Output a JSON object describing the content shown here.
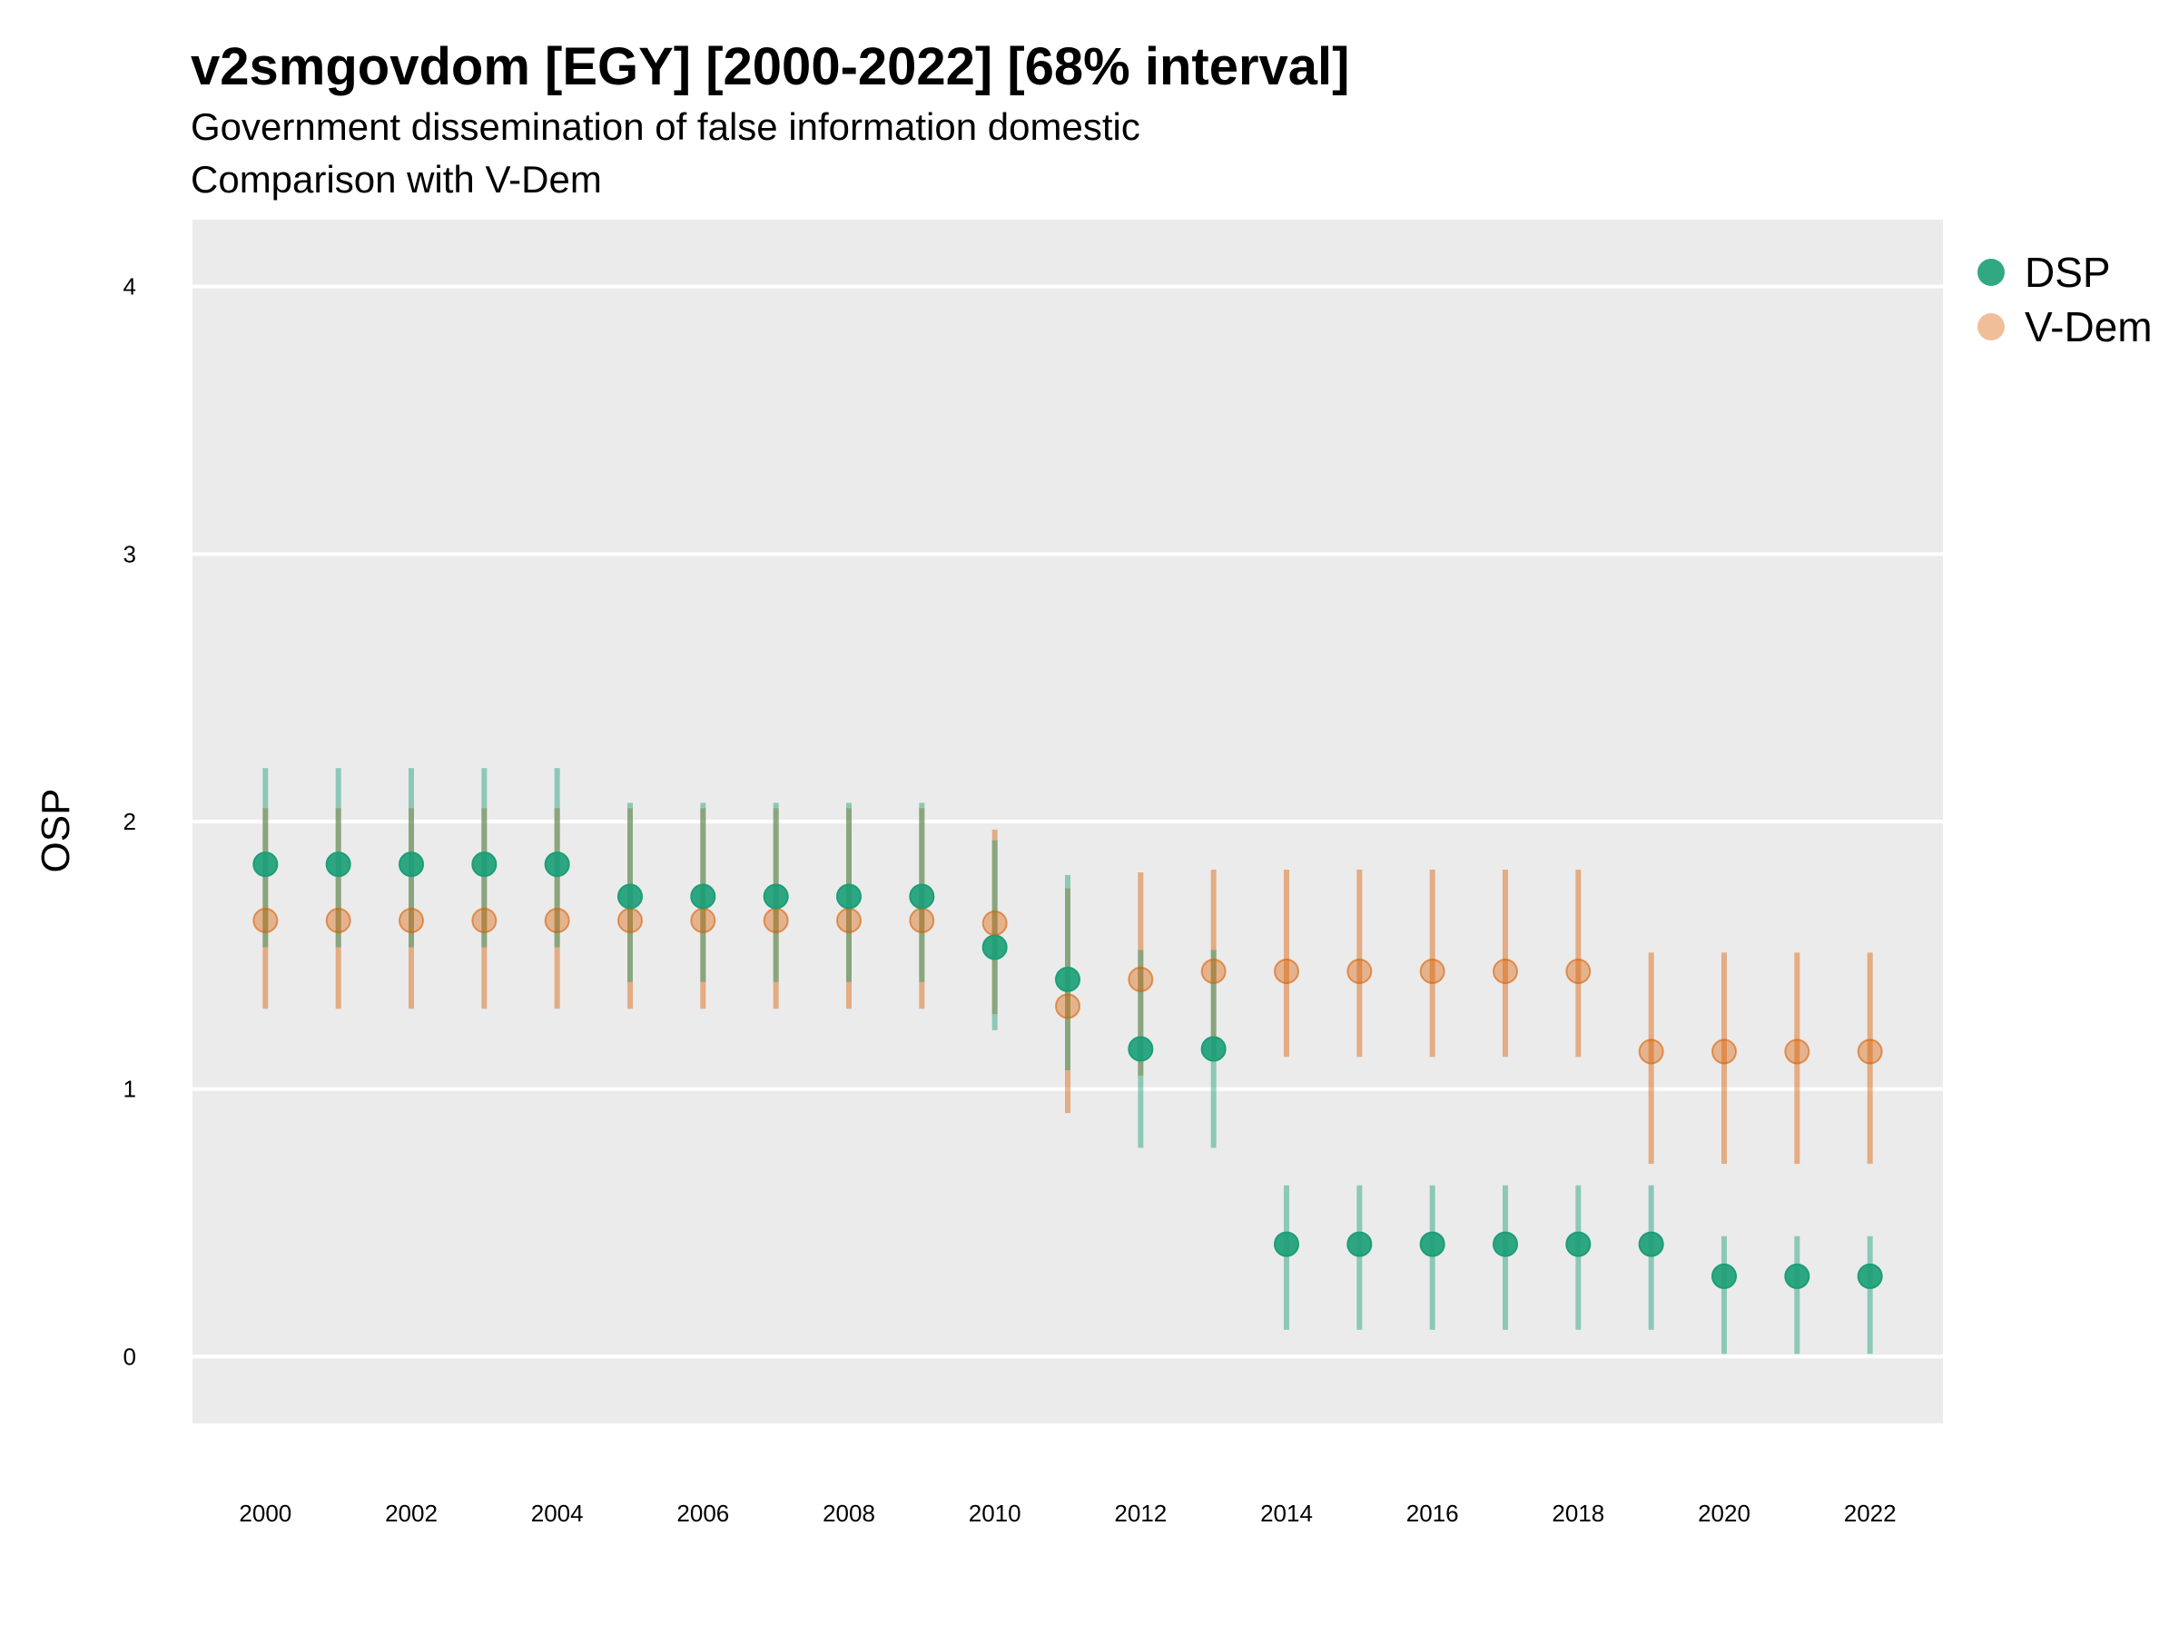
{
  "title": "v2smgovdom [EGY] [2000-2022] [68% interval]",
  "subtitle_lines": [
    "Government dissemination of false information domestic",
    "Comparison with V-Dem"
  ],
  "chart_data": {
    "type": "scatter",
    "title": "v2smgovdom [EGY] [2000-2022] [68% interval]",
    "xlabel": "",
    "ylabel": "OSP",
    "xlim": [
      1999,
      2023
    ],
    "ylim": [
      -0.25,
      4.25
    ],
    "x_ticks": [
      2000,
      2002,
      2004,
      2006,
      2008,
      2010,
      2012,
      2014,
      2016,
      2018,
      2020,
      2022
    ],
    "y_ticks": [
      0,
      1,
      2,
      3,
      4
    ],
    "grid": true,
    "legend_position": "top-right",
    "x": [
      2000,
      2001,
      2002,
      2003,
      2004,
      2005,
      2006,
      2007,
      2008,
      2009,
      2010,
      2011,
      2012,
      2013,
      2014,
      2015,
      2016,
      2017,
      2018,
      2019,
      2020,
      2021,
      2022
    ],
    "series": [
      {
        "name": "DSP",
        "color": "#1b9e77",
        "values": [
          1.84,
          1.84,
          1.84,
          1.84,
          1.84,
          1.72,
          1.72,
          1.72,
          1.72,
          1.72,
          1.53,
          1.41,
          1.15,
          1.15,
          0.42,
          0.42,
          0.42,
          0.42,
          0.42,
          0.42,
          0.3,
          0.3,
          0.3
        ],
        "lower": [
          1.53,
          1.53,
          1.53,
          1.53,
          1.53,
          1.4,
          1.4,
          1.4,
          1.4,
          1.4,
          1.22,
          1.07,
          0.78,
          0.78,
          0.1,
          0.1,
          0.1,
          0.1,
          0.1,
          0.1,
          0.01,
          0.01,
          0.01
        ],
        "upper": [
          2.2,
          2.2,
          2.2,
          2.2,
          2.2,
          2.07,
          2.07,
          2.07,
          2.07,
          2.07,
          1.93,
          1.8,
          1.52,
          1.52,
          0.64,
          0.64,
          0.64,
          0.64,
          0.64,
          0.64,
          0.45,
          0.45,
          0.45
        ]
      },
      {
        "name": "V-Dem",
        "color": "#d95f02",
        "values": [
          1.63,
          1.63,
          1.63,
          1.63,
          1.63,
          1.63,
          1.63,
          1.63,
          1.63,
          1.63,
          1.62,
          1.31,
          1.41,
          1.44,
          1.44,
          1.44,
          1.44,
          1.44,
          1.44,
          1.14,
          1.14,
          1.14,
          1.14
        ],
        "lower": [
          1.3,
          1.3,
          1.3,
          1.3,
          1.3,
          1.3,
          1.3,
          1.3,
          1.3,
          1.3,
          1.28,
          0.91,
          1.05,
          1.12,
          1.12,
          1.12,
          1.12,
          1.12,
          1.12,
          0.72,
          0.72,
          0.72,
          0.72
        ],
        "upper": [
          2.05,
          2.05,
          2.05,
          2.05,
          2.05,
          2.05,
          2.05,
          2.05,
          2.05,
          2.05,
          1.97,
          1.75,
          1.81,
          1.82,
          1.82,
          1.82,
          1.82,
          1.82,
          1.82,
          1.51,
          1.51,
          1.51,
          1.51
        ]
      }
    ]
  }
}
